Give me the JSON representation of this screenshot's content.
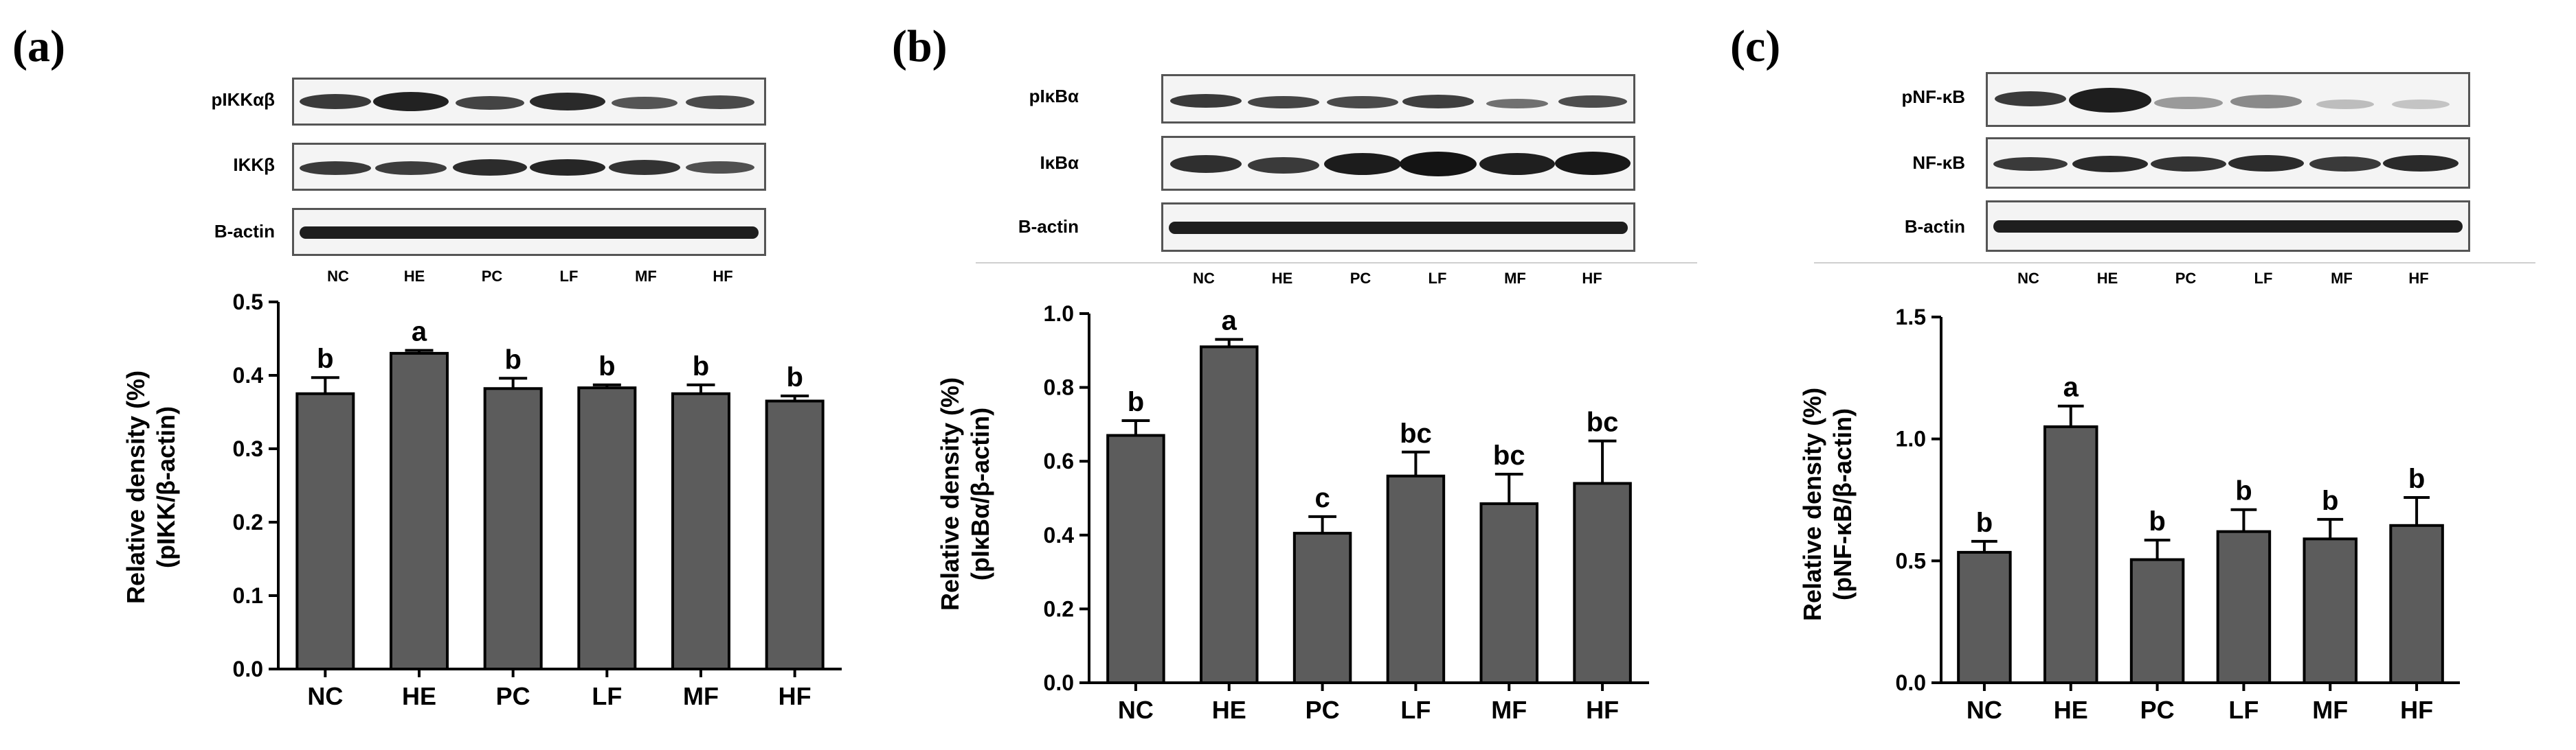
{
  "panels": [
    {
      "label": "(a)",
      "blot": {
        "rows": [
          "pIKKαβ",
          "IKKβ",
          "B-actin"
        ],
        "lanes": [
          "NC",
          "HE",
          "PC",
          "LF",
          "MF",
          "HF"
        ]
      }
    },
    {
      "label": "(b)",
      "blot": {
        "rows": [
          "pIκBα",
          "IκBα",
          "B-actin"
        ],
        "lanes": [
          "NC",
          "HE",
          "PC",
          "LF",
          "MF",
          "HF"
        ]
      }
    },
    {
      "label": "(c)",
      "blot": {
        "rows": [
          "pNF-κB",
          "NF-κB",
          "B-actin"
        ],
        "lanes": [
          "NC",
          "HE",
          "PC",
          "LF",
          "MF",
          "HF"
        ]
      }
    }
  ],
  "chart_data": [
    {
      "type": "bar",
      "categories": [
        "NC",
        "HE",
        "PC",
        "LF",
        "MF",
        "HF"
      ],
      "values": [
        0.375,
        0.43,
        0.382,
        0.383,
        0.375,
        0.365
      ],
      "errors": [
        0.022,
        0.004,
        0.014,
        0.004,
        0.012,
        0.007
      ],
      "letters": [
        "b",
        "a",
        "b",
        "b",
        "b",
        "b"
      ],
      "ylabel_line1": "Relative density (%)",
      "ylabel_line2": "(pIKK/β-actin)",
      "ylim": [
        0,
        0.5
      ],
      "yticks": [
        "0.0",
        "0.1",
        "0.2",
        "0.3",
        "0.4",
        "0.5"
      ],
      "bar_color": "#5c5c5c"
    },
    {
      "type": "bar",
      "categories": [
        "NC",
        "HE",
        "PC",
        "LF",
        "MF",
        "HF"
      ],
      "values": [
        0.67,
        0.91,
        0.405,
        0.56,
        0.485,
        0.54
      ],
      "errors": [
        0.04,
        0.02,
        0.045,
        0.065,
        0.08,
        0.115
      ],
      "letters": [
        "b",
        "a",
        "c",
        "bc",
        "bc",
        "bc"
      ],
      "ylabel_line1": "Relative density (%)",
      "ylabel_line2": "(pIκBα/β-actin)",
      "ylim": [
        0,
        1.0
      ],
      "yticks": [
        "0.0",
        "0.2",
        "0.4",
        "0.6",
        "0.8",
        "1.0"
      ],
      "bar_color": "#5c5c5c"
    },
    {
      "type": "bar",
      "categories": [
        "NC",
        "HE",
        "PC",
        "LF",
        "MF",
        "HF"
      ],
      "values": [
        0.535,
        1.05,
        0.505,
        0.62,
        0.59,
        0.645
      ],
      "errors": [
        0.045,
        0.085,
        0.08,
        0.09,
        0.08,
        0.115
      ],
      "letters": [
        "b",
        "a",
        "b",
        "b",
        "b",
        "b"
      ],
      "ylabel_line1": "Relative density (%)",
      "ylabel_line2": "(pNF-κB/β-actin)",
      "ylim": [
        0,
        1.5
      ],
      "yticks": [
        "0.0",
        "0.5",
        "1.0",
        "1.5"
      ],
      "bar_color": "#5c5c5c"
    }
  ]
}
